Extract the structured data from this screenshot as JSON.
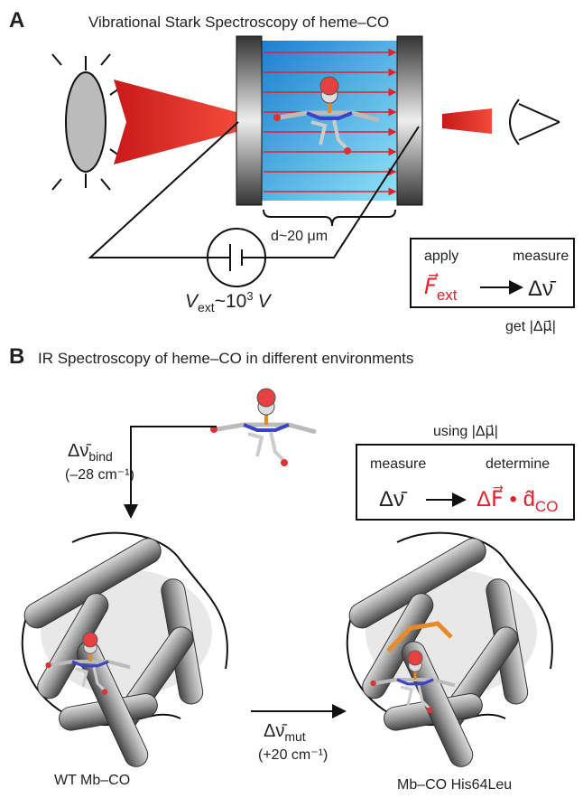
{
  "panel_a": {
    "label": "A",
    "title": "Vibrational Stark Spectroscopy of heme–CO",
    "cell_width": "d~20 μm",
    "voltage": {
      "symbol": "V",
      "sub": "ext",
      "mid": "~10",
      "sup": "3",
      "unit": "V"
    },
    "box": {
      "left_top": "apply",
      "right_top": "measure",
      "field": {
        "main": "F⃗",
        "sub": "ext"
      },
      "result": "Δν̄",
      "note": "get |Δμ⃗|"
    }
  },
  "panel_b": {
    "label": "B",
    "title": "IR Spectroscopy of heme–CO in different environments",
    "bind_shift": {
      "symbol": "Δν̄",
      "sub": "bind",
      "value": "(–28 cm⁻¹)"
    },
    "box": {
      "note": "using |Δμ⃗|",
      "left_top": "measure",
      "right_top": "determine",
      "input": "Δν̄",
      "output": {
        "main": "ΔF⃗ • d̂",
        "sub": "CO"
      }
    },
    "mut_shift": {
      "symbol": "Δν̄",
      "sub": "mut",
      "value": "(+20 cm⁻¹)"
    },
    "proteins": [
      "WT Mb–CO",
      "Mb–CO His64Leu"
    ]
  }
}
